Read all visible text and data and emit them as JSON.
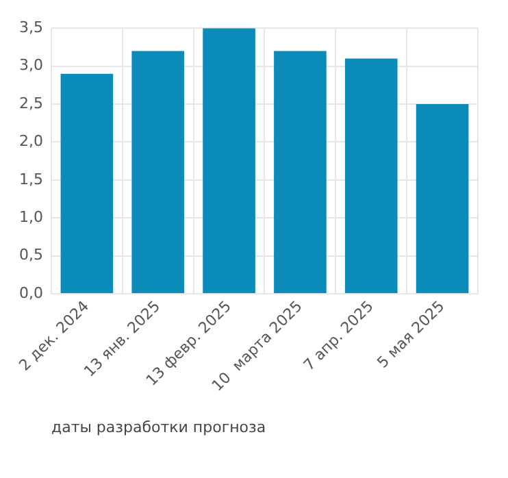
{
  "chart_data": {
    "type": "bar",
    "xlabel": "даты разработки прогноза",
    "categories": [
      "2 дек. 2024",
      "13 янв. 2025",
      "13 февр. 2025",
      "10  марта 2025",
      "7 апр. 2025",
      "5 мая 2025"
    ],
    "values": [
      2.9,
      3.2,
      3.5,
      3.2,
      3.1,
      2.5
    ],
    "color": "#0a8bb8",
    "ylim": [
      0,
      3.5
    ],
    "yticks": [
      {
        "value": 0,
        "label": "0,0"
      },
      {
        "value": 0.5,
        "label": "0,5"
      },
      {
        "value": 1,
        "label": "1,0"
      },
      {
        "value": 1.5,
        "label": "1,5"
      },
      {
        "value": 2,
        "label": "2,0"
      },
      {
        "value": 2.5,
        "label": "2,5"
      },
      {
        "value": 3,
        "label": "3,0"
      },
      {
        "value": 3.5,
        "label": "3,5"
      }
    ],
    "grid": true
  }
}
